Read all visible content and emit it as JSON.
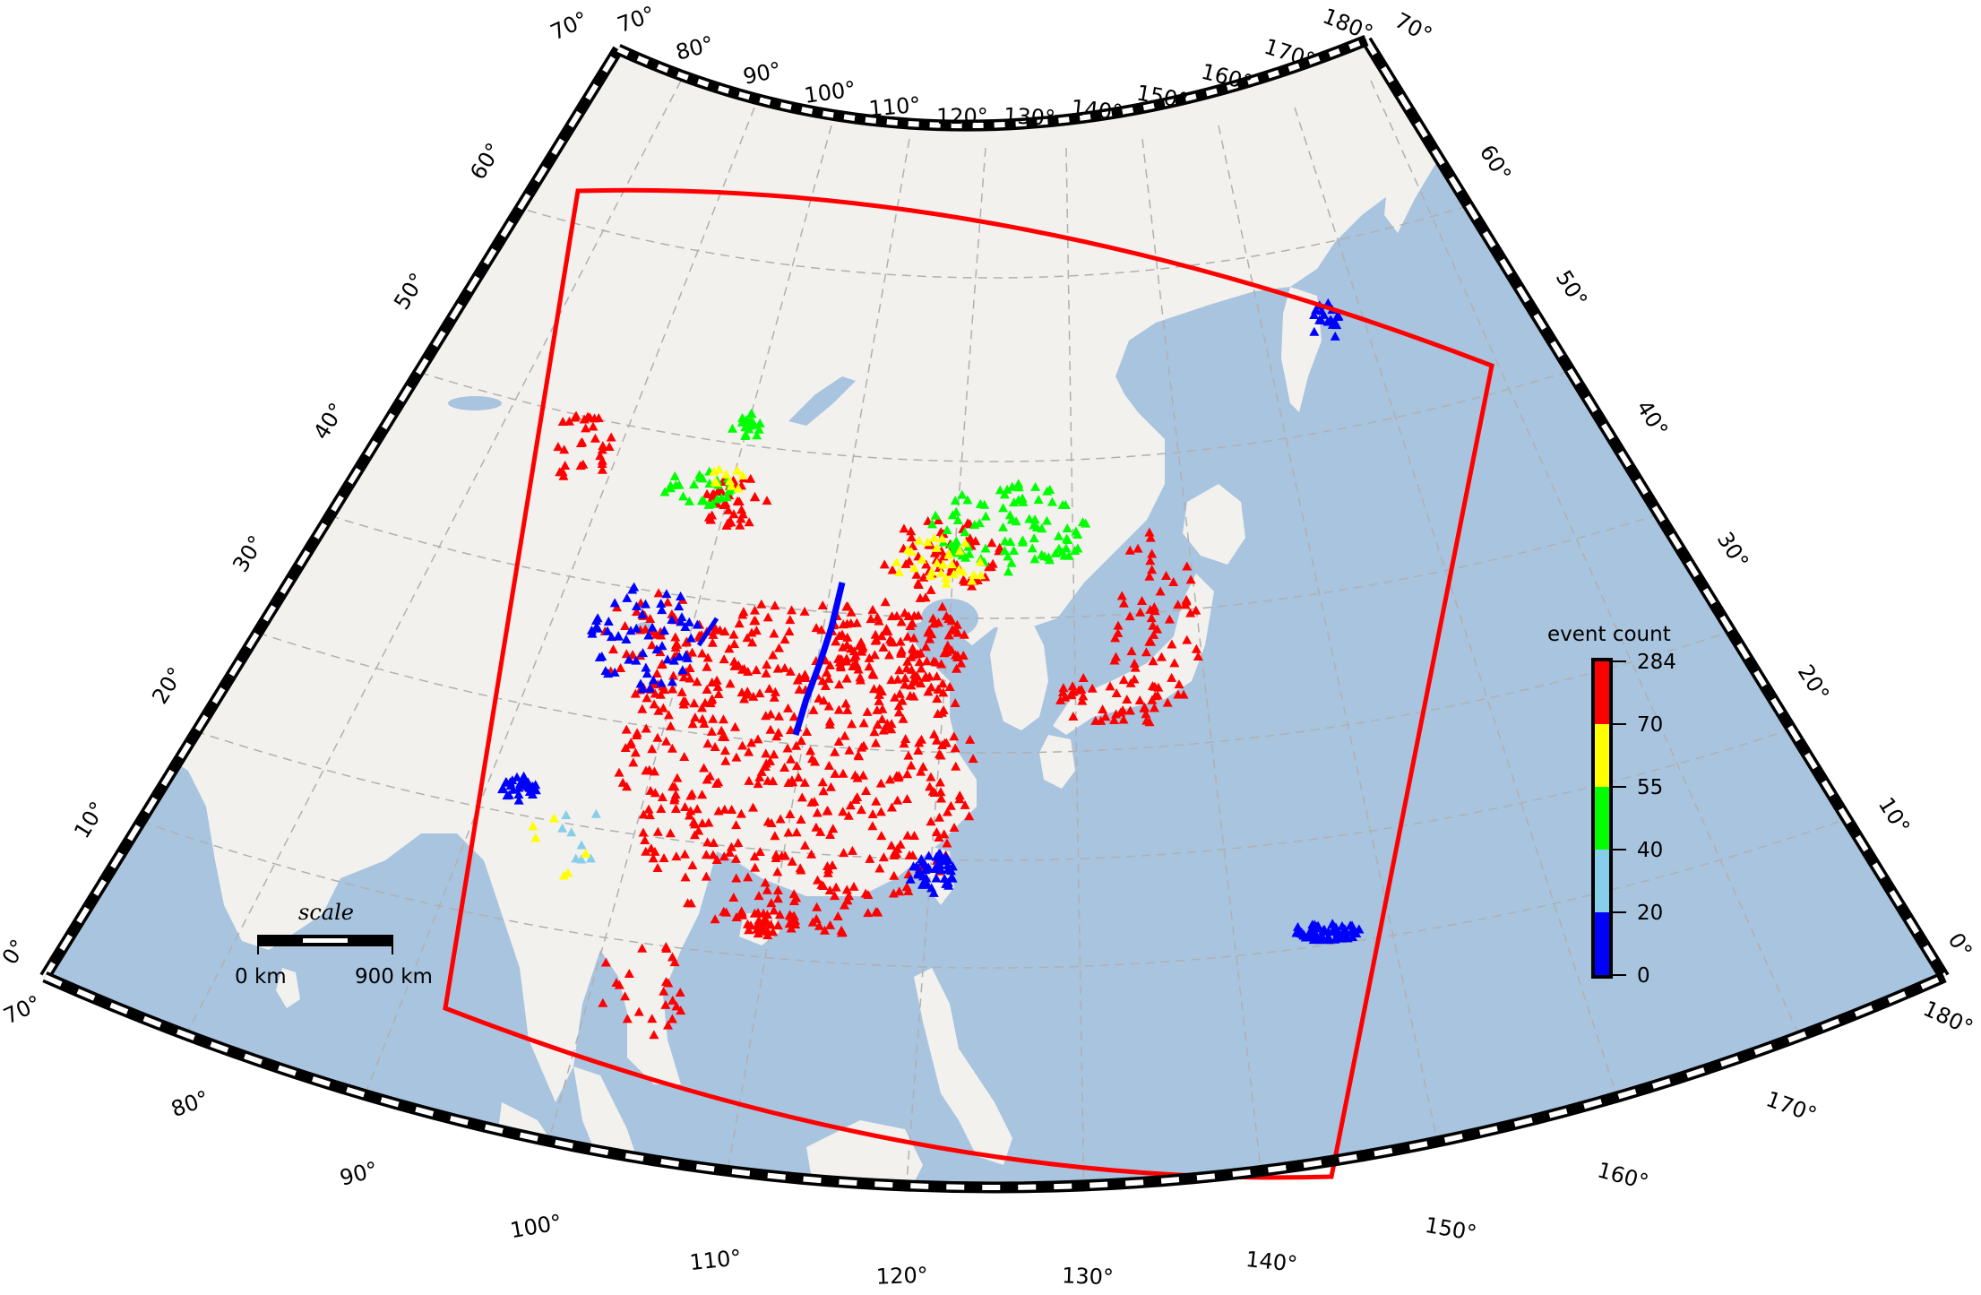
{
  "map": {
    "projection": "conic",
    "lon_range": [
      70,
      180
    ],
    "lat_range": [
      0,
      70
    ],
    "colors": {
      "ocean": "#a8c4df",
      "land": "#f2f1ee",
      "lake": "#a8c4df",
      "grid": "#b0b0b0",
      "region_box": "#ff0000"
    },
    "axes": {
      "top_lon_labels": [
        "70°",
        "80°",
        "90°",
        "100°",
        "110°",
        "120°",
        "130°",
        "140°",
        "150°",
        "160°",
        "170°",
        "180°"
      ],
      "bottom_lon_labels": [
        "70°",
        "80°",
        "90°",
        "100°",
        "110°",
        "120°",
        "130°",
        "140°",
        "150°",
        "160°",
        "170°",
        "180°"
      ],
      "left_lat_labels": [
        "0°",
        "10°",
        "20°",
        "30°",
        "40°",
        "50°",
        "60°",
        "70°"
      ],
      "right_lat_labels": [
        "0°",
        "10°",
        "20°",
        "30°",
        "40°",
        "50°",
        "60°",
        "70°"
      ]
    },
    "region_box": {
      "description_lon": [
        94,
        152
      ],
      "description_lat": [
        5,
        57
      ]
    },
    "scale_bar": {
      "title": "scale",
      "start_label": "0 km",
      "end_label": "900 km"
    },
    "colorbar": {
      "title": "event count",
      "ticks": [
        "284",
        "70",
        "55",
        "40",
        "20",
        "0"
      ],
      "bins": [
        {
          "from": 0,
          "to": 20,
          "color": "#0000ff"
        },
        {
          "from": 20,
          "to": 40,
          "color": "#87ceeb"
        },
        {
          "from": 40,
          "to": 55,
          "color": "#00ff00"
        },
        {
          "from": 55,
          "to": 70,
          "color": "#ffff00"
        },
        {
          "from": 70,
          "to": 284,
          "color": "#ff0000"
        }
      ]
    },
    "station_symbol": "triangle"
  }
}
